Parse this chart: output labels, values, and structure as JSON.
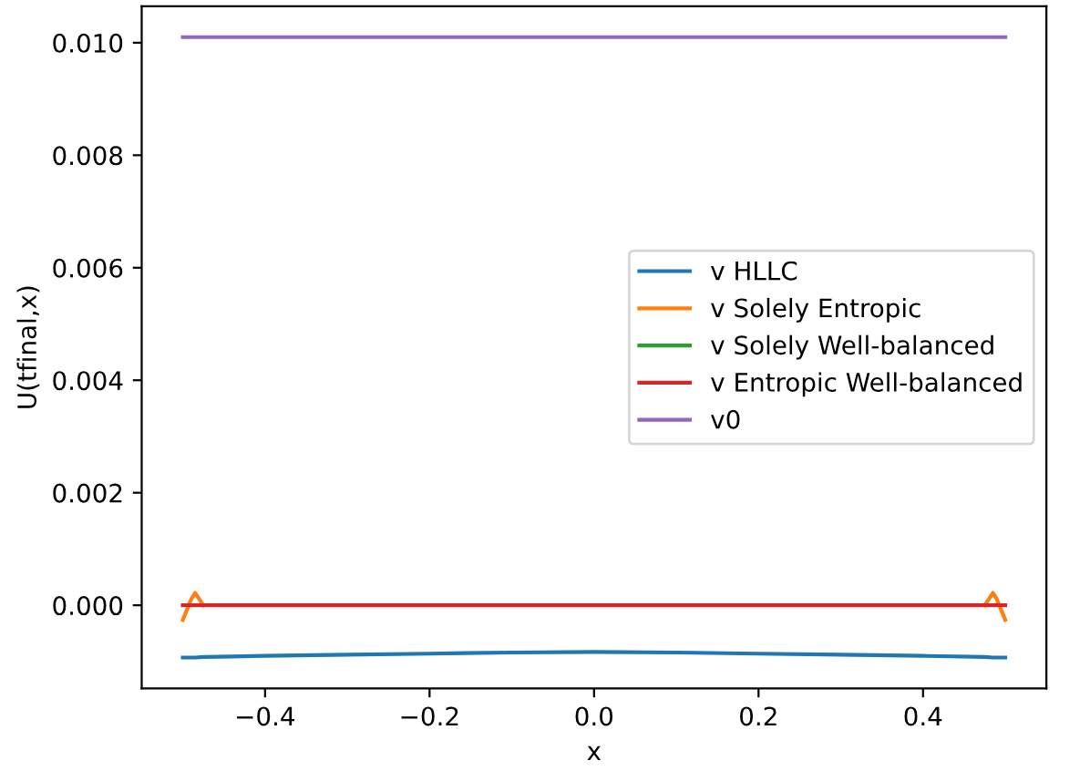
{
  "chart_data": {
    "type": "line",
    "xlabel": "x",
    "ylabel": "U(tfinal,x)",
    "x": [
      -0.5,
      -0.49,
      -0.485,
      -0.475,
      -0.4,
      -0.3,
      -0.2,
      -0.1,
      0,
      0.1,
      0.2,
      0.3,
      0.4,
      0.475,
      0.485,
      0.49,
      0.5
    ],
    "series": [
      {
        "name": "v HLLC",
        "color": "#1f77b4",
        "values": [
          -0.00093,
          -0.00093,
          -0.00093,
          -0.00092,
          -0.0009,
          -0.00088,
          -0.00086,
          -0.00084,
          -0.00083,
          -0.00084,
          -0.00086,
          -0.00088,
          -0.0009,
          -0.00092,
          -0.00093,
          -0.00093,
          -0.00093
        ]
      },
      {
        "name": "v Solely Entropic",
        "color": "#ff7f0e",
        "values": [
          -0.00026,
          0.0001,
          0.00022,
          0,
          null,
          null,
          null,
          null,
          null,
          null,
          null,
          null,
          null,
          0,
          0.00022,
          0.0001,
          -0.00026
        ]
      },
      {
        "name": "v Solely Well-balanced",
        "color": "#2ca02c",
        "values": [
          null,
          null,
          null,
          null,
          null,
          null,
          null,
          null,
          null,
          null,
          null,
          null,
          null,
          null,
          null,
          null,
          null
        ]
      },
      {
        "name": "v Entropic Well-balanced",
        "color": "#d62728",
        "values": [
          0,
          0,
          0,
          0,
          0,
          0,
          0,
          0,
          0,
          0,
          0,
          0,
          0,
          0,
          0,
          0,
          0
        ]
      },
      {
        "name": "v0",
        "color": "#9467bd",
        "values": [
          0.0101,
          0.0101,
          0.0101,
          0.0101,
          0.0101,
          0.0101,
          0.0101,
          0.0101,
          0.0101,
          0.0101,
          0.0101,
          0.0101,
          0.0101,
          0.0101,
          0.0101,
          0.0101,
          0.0101
        ]
      }
    ],
    "xlim": [
      -0.55,
      0.55
    ],
    "ylim": [
      -0.00148,
      0.01065
    ],
    "xticks": [
      {
        "value": -0.4,
        "label": "−0.4"
      },
      {
        "value": -0.2,
        "label": "−0.2"
      },
      {
        "value": 0.0,
        "label": "0.0"
      },
      {
        "value": 0.2,
        "label": "0.2"
      },
      {
        "value": 0.4,
        "label": "0.4"
      }
    ],
    "yticks": [
      {
        "value": 0.0,
        "label": "0.000"
      },
      {
        "value": 0.002,
        "label": "0.002"
      },
      {
        "value": 0.004,
        "label": "0.004"
      },
      {
        "value": 0.006,
        "label": "0.006"
      },
      {
        "value": 0.008,
        "label": "0.008"
      },
      {
        "value": 0.01,
        "label": "0.010"
      }
    ],
    "legend": "right",
    "grid": false
  }
}
